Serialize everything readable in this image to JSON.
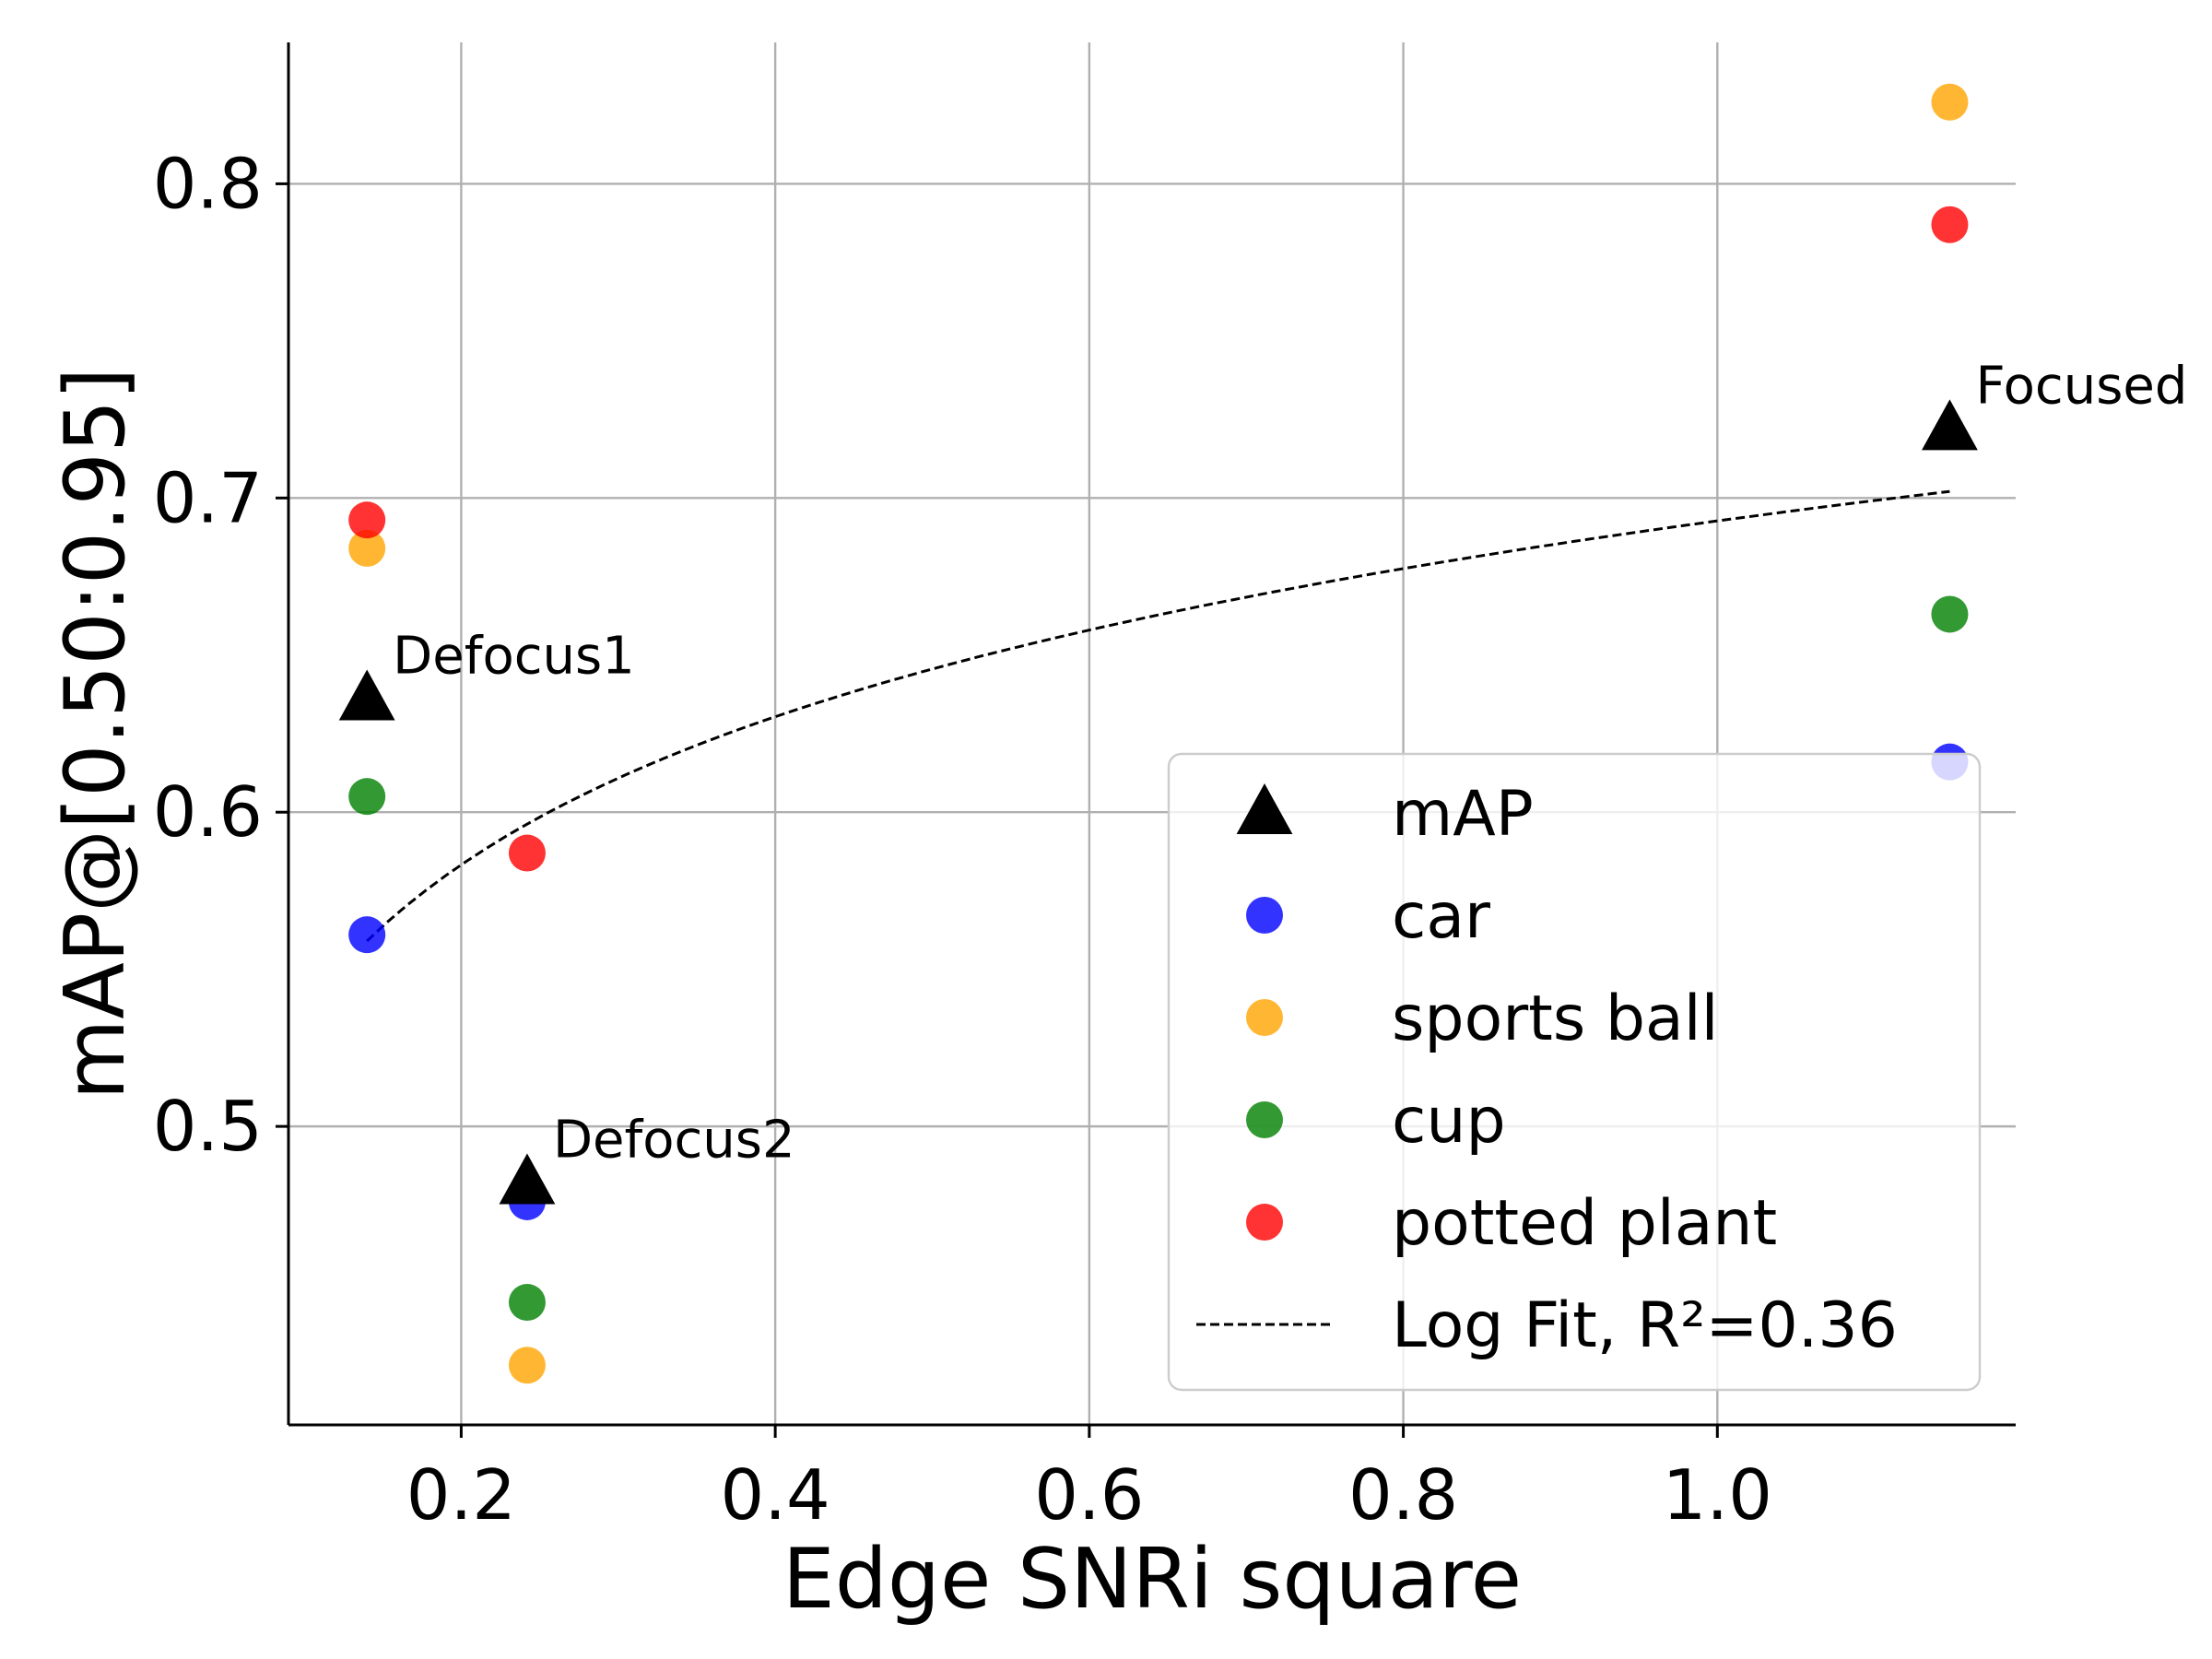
{
  "chart_data": {
    "type": "scatter",
    "xlabel": "Edge SNRi square",
    "ylabel": "mAP@[0.50:0.95]",
    "xlim": [
      0.09,
      1.19
    ],
    "ylim": [
      0.405,
      0.845
    ],
    "xticks": [
      0.2,
      0.4,
      0.6,
      0.8,
      1.0
    ],
    "xtick_labels": [
      "0.2",
      "0.4",
      "0.6",
      "0.8",
      "1.0"
    ],
    "yticks": [
      0.5,
      0.6,
      0.7,
      0.8
    ],
    "ytick_labels": [
      "0.5",
      "0.6",
      "0.7",
      "0.8"
    ],
    "grid": true,
    "legend_position": "lower-right",
    "series": [
      {
        "name": "mAP",
        "marker": "triangle",
        "color": "#000000",
        "points": [
          {
            "x": 0.14,
            "y": 0.636
          },
          {
            "x": 0.242,
            "y": 0.482
          },
          {
            "x": 1.148,
            "y": 0.722
          }
        ]
      },
      {
        "name": "car",
        "marker": "circle",
        "color": "#0000ff",
        "points": [
          {
            "x": 0.14,
            "y": 0.561
          },
          {
            "x": 0.242,
            "y": 0.476
          },
          {
            "x": 1.148,
            "y": 0.616
          }
        ]
      },
      {
        "name": "sports ball",
        "marker": "circle",
        "color": "#ffa500",
        "points": [
          {
            "x": 0.14,
            "y": 0.684
          },
          {
            "x": 0.242,
            "y": 0.424
          },
          {
            "x": 1.148,
            "y": 0.826
          }
        ]
      },
      {
        "name": "cup",
        "marker": "circle",
        "color": "#008000",
        "points": [
          {
            "x": 0.14,
            "y": 0.605
          },
          {
            "x": 0.242,
            "y": 0.444
          },
          {
            "x": 1.148,
            "y": 0.663
          }
        ]
      },
      {
        "name": "potted plant",
        "marker": "circle",
        "color": "#ff0000",
        "points": [
          {
            "x": 0.14,
            "y": 0.693
          },
          {
            "x": 0.242,
            "y": 0.587
          },
          {
            "x": 1.148,
            "y": 0.787
          }
        ]
      }
    ],
    "fit": {
      "name": "Log Fit, R²=0.36",
      "style": "dashed",
      "color": "#000000",
      "model": "log",
      "a": 0.6927,
      "b": 0.068,
      "x_range": [
        0.14,
        1.148
      ]
    },
    "annotations": [
      {
        "text": "Defocus1",
        "x": 0.14,
        "y": 0.636
      },
      {
        "text": "Defocus2",
        "x": 0.242,
        "y": 0.482
      },
      {
        "text": "Focused",
        "x": 1.148,
        "y": 0.722
      }
    ]
  }
}
